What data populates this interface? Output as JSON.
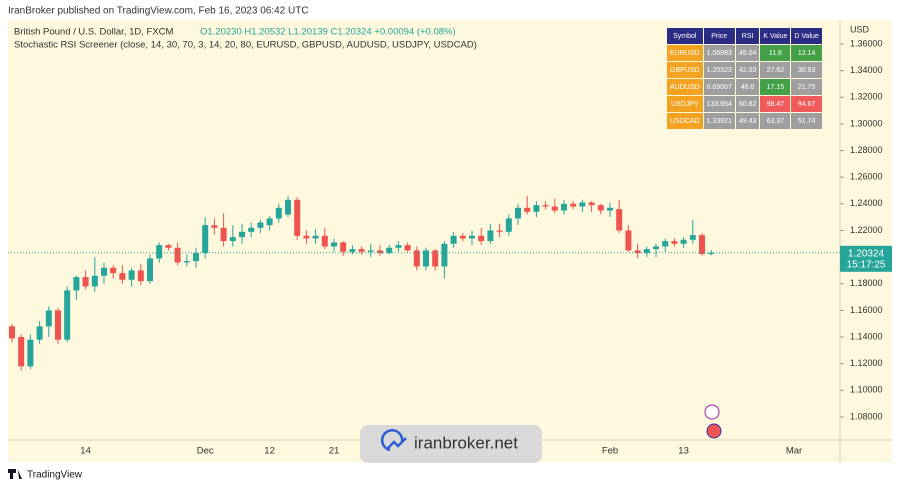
{
  "header": {
    "published": "IranBroker published on TradingView.com, Feb 16, 2023 06:42 UTC",
    "footer": "TradingView",
    "watermark": "iranbroker.net"
  },
  "chart_data": {
    "type": "candlestick",
    "title": "British Pound / U.S. Dollar, 1D, FXCM",
    "ohlc_text": "O1.20230 H1.20532 L1.20139 C1.20324 +0.00094 (+0.08%)",
    "subtitle": "Stochastic RSI Screener (close, 14, 30, 70, 3, 14, 20, 80, EURUSD, GBPUSD, AUDUSD, USDJPY, USDCAD)",
    "y_unit": "USD",
    "up_color": "#26a69a",
    "down_color": "#ef5350",
    "categories": [
      null,
      null,
      null,
      null,
      null,
      null,
      null,
      null,
      "14",
      null,
      null,
      null,
      null,
      null,
      null,
      null,
      null,
      null,
      null,
      null,
      null,
      "Dec",
      null,
      null,
      null,
      null,
      null,
      null,
      "12",
      null,
      null,
      null,
      null,
      null,
      null,
      "21",
      null,
      null,
      null,
      null,
      null,
      null,
      null,
      null,
      null,
      null,
      null,
      null,
      null,
      null,
      null,
      null,
      null,
      null,
      null,
      null,
      null,
      null,
      null,
      null,
      null,
      null,
      null,
      null,
      null,
      "Feb",
      null,
      null,
      null,
      null,
      null,
      null,
      null,
      "13",
      null,
      null,
      null,
      null,
      null,
      null,
      null,
      null,
      null,
      null,
      null,
      "Mar"
    ],
    "open": [
      1.148,
      1.14,
      1.118,
      1.138,
      1.148,
      1.16,
      1.138,
      1.175,
      1.185,
      1.178,
      1.186,
      1.192,
      1.188,
      1.183,
      1.19,
      1.182,
      1.199,
      1.209,
      1.207,
      1.196,
      1.197,
      1.203,
      1.224,
      1.222,
      1.212,
      1.215,
      1.219,
      1.222,
      1.224,
      1.229,
      1.232,
      1.243,
      1.216,
      1.214,
      1.216,
      1.208,
      1.211,
      1.204,
      1.206,
      1.204,
      1.205,
      1.203,
      1.207,
      1.209,
      1.205,
      1.193,
      1.205,
      1.193,
      1.21,
      1.216,
      1.214,
      1.216,
      1.212,
      1.22,
      1.219,
      1.229,
      1.237,
      1.234,
      1.239,
      1.238,
      1.235,
      1.24,
      1.238,
      1.241,
      1.239,
      1.235,
      1.236,
      1.22,
      1.205,
      1.203,
      1.206,
      1.208,
      1.212,
      1.21,
      1.213,
      1.2165,
      1.2023,
      null,
      null,
      null,
      null,
      null,
      null,
      null,
      null,
      null
    ],
    "high": [
      1.15,
      1.142,
      1.142,
      1.152,
      1.163,
      1.162,
      1.178,
      1.186,
      1.19,
      1.2,
      1.196,
      1.194,
      1.194,
      1.192,
      1.195,
      1.202,
      1.211,
      1.21,
      1.211,
      1.202,
      1.207,
      1.23,
      1.229,
      1.233,
      1.224,
      1.225,
      1.226,
      1.228,
      1.231,
      1.24,
      1.246,
      1.245,
      1.22,
      1.221,
      1.222,
      1.214,
      1.212,
      1.209,
      1.208,
      1.21,
      1.209,
      1.209,
      1.212,
      1.211,
      1.208,
      1.207,
      1.206,
      1.212,
      1.219,
      1.218,
      1.22,
      1.222,
      1.225,
      1.225,
      1.232,
      1.24,
      1.246,
      1.242,
      1.242,
      1.244,
      1.243,
      1.242,
      1.243,
      1.242,
      1.24,
      1.241,
      1.243,
      1.224,
      1.21,
      1.208,
      1.21,
      1.214,
      1.214,
      1.215,
      1.228,
      1.218,
      1.20532,
      null,
      null,
      null,
      null,
      null,
      null,
      null,
      null,
      null
    ],
    "low": [
      1.136,
      1.115,
      1.116,
      1.135,
      1.14,
      1.135,
      1.136,
      1.168,
      1.176,
      1.174,
      1.18,
      1.184,
      1.18,
      1.178,
      1.179,
      1.18,
      1.196,
      1.205,
      1.194,
      1.193,
      1.192,
      1.199,
      1.217,
      1.208,
      1.208,
      1.21,
      1.215,
      1.218,
      1.22,
      1.226,
      1.23,
      1.213,
      1.21,
      1.21,
      1.206,
      1.204,
      1.201,
      1.202,
      1.202,
      1.2,
      1.201,
      1.202,
      1.204,
      1.204,
      1.19,
      1.19,
      1.19,
      1.184,
      1.207,
      1.212,
      1.209,
      1.209,
      1.21,
      1.215,
      1.216,
      1.224,
      1.232,
      1.23,
      1.236,
      1.233,
      1.232,
      1.236,
      1.234,
      1.234,
      1.232,
      1.23,
      1.218,
      1.204,
      1.199,
      1.2,
      1.2,
      1.204,
      1.208,
      1.207,
      1.21,
      1.201,
      1.20139,
      null,
      null,
      null,
      null,
      null,
      null,
      null,
      null,
      null
    ],
    "close": [
      1.139,
      1.118,
      1.138,
      1.148,
      1.16,
      1.138,
      1.175,
      1.185,
      1.178,
      1.186,
      1.192,
      1.188,
      1.183,
      1.19,
      1.182,
      1.199,
      1.209,
      1.207,
      1.196,
      1.197,
      1.203,
      1.224,
      1.222,
      1.212,
      1.215,
      1.219,
      1.222,
      1.226,
      1.229,
      1.237,
      1.243,
      1.216,
      1.214,
      1.216,
      1.208,
      1.211,
      1.204,
      1.206,
      1.204,
      1.205,
      1.203,
      1.207,
      1.209,
      1.205,
      1.193,
      1.205,
      1.193,
      1.21,
      1.216,
      1.214,
      1.216,
      1.212,
      1.22,
      1.219,
      1.229,
      1.237,
      1.234,
      1.239,
      1.238,
      1.235,
      1.24,
      1.238,
      1.241,
      1.239,
      1.235,
      1.237,
      1.22,
      1.205,
      1.203,
      1.206,
      1.208,
      1.212,
      1.21,
      1.213,
      1.2165,
      1.2023,
      1.20324,
      null,
      null,
      null,
      null,
      null,
      null,
      null,
      null,
      null
    ],
    "ylim": [
      1.0627,
      1.378
    ],
    "yticks": [
      {
        "value": 1.08,
        "label": "1.08000"
      },
      {
        "value": 1.1,
        "label": "1.10000"
      },
      {
        "value": 1.12,
        "label": "1.12000"
      },
      {
        "value": 1.14,
        "label": "1.14000"
      },
      {
        "value": 1.16,
        "label": "1.16000"
      },
      {
        "value": 1.18,
        "label": "1.18000"
      },
      {
        "value": 1.2,
        "label": "1.20000"
      },
      {
        "value": 1.22,
        "label": "1.22000"
      },
      {
        "value": 1.24,
        "label": "1.24000"
      },
      {
        "value": 1.26,
        "label": "1.26000"
      },
      {
        "value": 1.28,
        "label": "1.28000"
      },
      {
        "value": 1.3,
        "label": "1.30000"
      },
      {
        "value": 1.32,
        "label": "1.32000"
      },
      {
        "value": 1.34,
        "label": "1.34000"
      },
      {
        "value": 1.36,
        "label": "1.36000"
      }
    ],
    "last_price": {
      "value": 1.20324,
      "label": "1.20324"
    },
    "countdown": "15:17:25",
    "last_color": "#26a69a"
  },
  "screener": {
    "header_color": "#2b2d84",
    "symbol_color": "#f4a320",
    "neutral_color": "#9e9e9e",
    "columns": [
      "Symbol",
      "Price",
      "RSI",
      "K Value",
      "D Value"
    ],
    "rows": [
      {
        "cells": [
          "EURUSD",
          "1.06983",
          "45.04",
          "11.8",
          "12.14"
        ],
        "k_color": "#43a047",
        "d_color": "#43a047"
      },
      {
        "cells": [
          "GBPUSD",
          "1.20323",
          "42.03",
          "27.62",
          "30.93"
        ],
        "k_color": "#9e9e9e",
        "d_color": "#9e9e9e"
      },
      {
        "cells": [
          "AUDUSD",
          "0.69067",
          "46.6",
          "17.15",
          "21.75"
        ],
        "k_color": "#43a047",
        "d_color": "#9e9e9e"
      },
      {
        "cells": [
          "USDJPY",
          "133.954",
          "60.82",
          "98.47",
          "94.67"
        ],
        "k_color": "#f05a5a",
        "d_color": "#f05a5a"
      },
      {
        "cells": [
          "USDCAD",
          "1.33921",
          "49.43",
          "63.37",
          "51.74"
        ],
        "k_color": "#9e9e9e",
        "d_color": "#9e9e9e"
      }
    ]
  }
}
